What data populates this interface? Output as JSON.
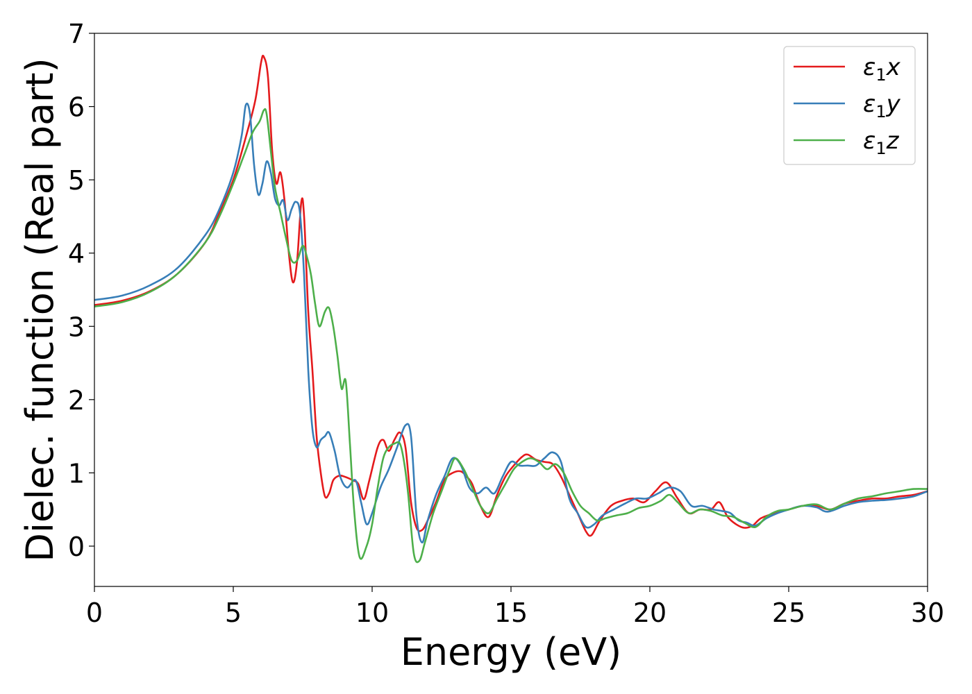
{
  "chart_data": {
    "type": "line",
    "xlabel": "Energy (eV)",
    "ylabel": "Dielec. function (Real part)",
    "xlim": [
      0,
      30
    ],
    "ylim": [
      -0.55,
      7.0
    ],
    "xticks": [
      0,
      5,
      10,
      15,
      20,
      25,
      30
    ],
    "yticks": [
      0,
      1,
      2,
      3,
      4,
      5,
      6,
      7
    ],
    "grid": false,
    "legend_position": "top-right",
    "series": [
      {
        "name": "ε₁x",
        "legend_base": "ε",
        "legend_sub": "1",
        "legend_suffix": "x",
        "color": "#e41a1c",
        "x": [
          0,
          1,
          2,
          3,
          4,
          4.5,
          5,
          5.5,
          5.8,
          6.0,
          6.1,
          6.25,
          6.4,
          6.55,
          6.7,
          6.85,
          7.0,
          7.15,
          7.3,
          7.45,
          7.55,
          7.7,
          7.85,
          8.0,
          8.15,
          8.3,
          8.45,
          8.6,
          8.8,
          9.0,
          9.3,
          9.5,
          9.7,
          9.9,
          10.2,
          10.4,
          10.6,
          10.8,
          11.0,
          11.2,
          11.4,
          11.6,
          11.8,
          12.0,
          12.3,
          12.6,
          12.9,
          13.2,
          13.4,
          13.6,
          13.9,
          14.2,
          14.5,
          14.8,
          15.1,
          15.4,
          15.6,
          15.9,
          16.2,
          16.5,
          16.8,
          17.1,
          17.4,
          17.7,
          17.9,
          18.2,
          18.6,
          19.0,
          19.4,
          19.8,
          20.2,
          20.6,
          21.0,
          21.4,
          21.8,
          22.2,
          22.5,
          22.8,
          23.1,
          23.4,
          23.7,
          24.0,
          24.5,
          25.0,
          25.5,
          26.0,
          26.5,
          27.0,
          27.5,
          28.0,
          28.5,
          29.0,
          29.5,
          30.0
        ],
        "y": [
          3.29,
          3.35,
          3.48,
          3.72,
          4.15,
          4.55,
          5.0,
          5.65,
          6.1,
          6.6,
          6.68,
          6.4,
          5.4,
          4.95,
          5.1,
          4.7,
          4.0,
          3.6,
          3.9,
          4.7,
          4.5,
          3.2,
          2.4,
          1.5,
          1.0,
          0.68,
          0.72,
          0.9,
          0.96,
          0.95,
          0.9,
          0.85,
          0.64,
          0.9,
          1.35,
          1.45,
          1.3,
          1.45,
          1.55,
          1.35,
          0.6,
          0.25,
          0.22,
          0.35,
          0.6,
          0.9,
          1.0,
          1.02,
          0.95,
          0.85,
          0.55,
          0.4,
          0.7,
          0.95,
          1.1,
          1.22,
          1.25,
          1.18,
          1.15,
          1.12,
          0.95,
          0.7,
          0.45,
          0.2,
          0.15,
          0.35,
          0.55,
          0.62,
          0.65,
          0.6,
          0.75,
          0.87,
          0.65,
          0.45,
          0.5,
          0.5,
          0.6,
          0.4,
          0.3,
          0.25,
          0.28,
          0.38,
          0.45,
          0.5,
          0.55,
          0.55,
          0.5,
          0.58,
          0.62,
          0.65,
          0.65,
          0.68,
          0.7,
          0.75
        ]
      },
      {
        "name": "ε₁y",
        "legend_base": "ε",
        "legend_sub": "1",
        "legend_suffix": "y",
        "color": "#377eb8",
        "x": [
          0,
          1,
          2,
          3,
          4,
          4.5,
          5,
          5.3,
          5.45,
          5.6,
          5.75,
          5.9,
          6.05,
          6.2,
          6.35,
          6.5,
          6.65,
          6.8,
          6.95,
          7.1,
          7.25,
          7.4,
          7.55,
          7.7,
          7.85,
          8.0,
          8.15,
          8.3,
          8.45,
          8.65,
          8.85,
          9.1,
          9.4,
          9.6,
          9.8,
          10.0,
          10.3,
          10.6,
          10.9,
          11.2,
          11.4,
          11.6,
          11.8,
          12.0,
          12.3,
          12.6,
          12.9,
          13.2,
          13.5,
          13.8,
          14.1,
          14.4,
          14.7,
          15.0,
          15.3,
          15.6,
          15.9,
          16.2,
          16.5,
          16.8,
          17.1,
          17.4,
          17.7,
          18.0,
          18.3,
          18.7,
          19.1,
          19.5,
          19.9,
          20.3,
          20.7,
          21.1,
          21.5,
          21.9,
          22.3,
          22.6,
          22.9,
          23.2,
          23.5,
          23.8,
          24.2,
          24.6,
          25.0,
          25.5,
          26.0,
          26.4,
          27.0,
          27.5,
          28.0,
          28.5,
          29.0,
          29.5,
          30.0
        ],
        "y": [
          3.36,
          3.42,
          3.56,
          3.8,
          4.25,
          4.6,
          5.1,
          5.6,
          6.02,
          5.9,
          5.2,
          4.8,
          4.95,
          5.25,
          5.1,
          4.75,
          4.65,
          4.72,
          4.45,
          4.6,
          4.7,
          4.55,
          3.7,
          2.4,
          1.6,
          1.35,
          1.45,
          1.5,
          1.55,
          1.3,
          0.95,
          0.8,
          0.9,
          0.6,
          0.3,
          0.45,
          0.8,
          1.05,
          1.35,
          1.65,
          1.5,
          0.4,
          0.05,
          0.35,
          0.7,
          0.95,
          1.2,
          1.1,
          0.8,
          0.72,
          0.8,
          0.72,
          0.95,
          1.15,
          1.1,
          1.1,
          1.1,
          1.2,
          1.28,
          1.15,
          0.65,
          0.45,
          0.26,
          0.3,
          0.42,
          0.5,
          0.58,
          0.65,
          0.65,
          0.72,
          0.8,
          0.75,
          0.55,
          0.55,
          0.5,
          0.48,
          0.45,
          0.35,
          0.32,
          0.28,
          0.38,
          0.45,
          0.5,
          0.55,
          0.53,
          0.47,
          0.55,
          0.6,
          0.62,
          0.63,
          0.65,
          0.68,
          0.75
        ]
      },
      {
        "name": "ε₁z",
        "legend_base": "ε",
        "legend_sub": "1",
        "legend_suffix": "z",
        "color": "#4daf4a",
        "x": [
          0,
          1,
          2,
          3,
          4,
          4.5,
          5,
          5.4,
          5.7,
          5.95,
          6.1,
          6.2,
          6.35,
          6.5,
          6.7,
          6.9,
          7.1,
          7.3,
          7.5,
          7.65,
          7.8,
          7.95,
          8.1,
          8.3,
          8.45,
          8.6,
          8.75,
          8.9,
          9.05,
          9.2,
          9.35,
          9.55,
          9.8,
          10.0,
          10.2,
          10.4,
          10.6,
          10.8,
          11.0,
          11.15,
          11.3,
          11.5,
          11.7,
          11.9,
          12.2,
          12.5,
          12.8,
          13.0,
          13.3,
          13.6,
          13.9,
          14.2,
          14.5,
          14.8,
          15.1,
          15.4,
          15.7,
          16.0,
          16.3,
          16.6,
          16.9,
          17.2,
          17.5,
          17.8,
          18.1,
          18.4,
          18.8,
          19.2,
          19.6,
          20.0,
          20.4,
          20.7,
          21.0,
          21.4,
          21.8,
          22.2,
          22.6,
          23.0,
          23.4,
          23.8,
          24.2,
          24.6,
          25.0,
          25.5,
          26.0,
          26.5,
          27.0,
          27.5,
          28.0,
          28.5,
          29.0,
          29.5,
          30.0
        ],
        "y": [
          3.27,
          3.33,
          3.47,
          3.72,
          4.15,
          4.5,
          4.95,
          5.35,
          5.65,
          5.8,
          5.95,
          5.9,
          5.4,
          4.9,
          4.55,
          4.2,
          3.9,
          3.9,
          4.1,
          3.95,
          3.7,
          3.3,
          3.0,
          3.2,
          3.25,
          3.0,
          2.6,
          2.15,
          2.25,
          1.4,
          0.5,
          -0.15,
          0.0,
          0.3,
          0.8,
          1.2,
          1.35,
          1.4,
          1.4,
          1.15,
          0.7,
          -0.1,
          -0.2,
          0.05,
          0.45,
          0.75,
          1.05,
          1.2,
          1.05,
          0.8,
          0.55,
          0.45,
          0.65,
          0.85,
          1.05,
          1.15,
          1.2,
          1.15,
          1.05,
          1.12,
          1.0,
          0.75,
          0.55,
          0.45,
          0.35,
          0.38,
          0.42,
          0.45,
          0.52,
          0.55,
          0.62,
          0.7,
          0.6,
          0.45,
          0.5,
          0.48,
          0.42,
          0.4,
          0.32,
          0.26,
          0.4,
          0.48,
          0.5,
          0.55,
          0.57,
          0.5,
          0.58,
          0.65,
          0.68,
          0.72,
          0.75,
          0.78,
          0.78
        ]
      }
    ]
  }
}
